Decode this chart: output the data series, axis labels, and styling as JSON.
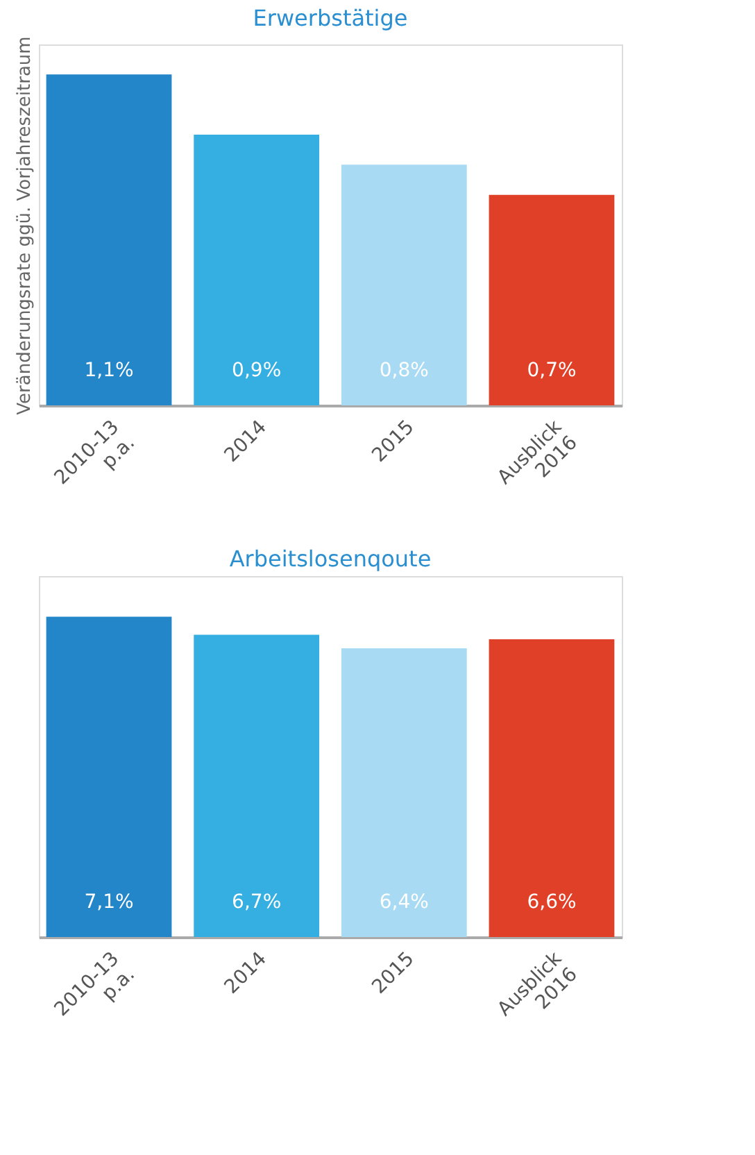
{
  "chart_data": [
    {
      "type": "bar",
      "title": "Erwerbstätige",
      "ylabel": "Veränderungsrate ggü. Vorjahreszeitraum",
      "categories": [
        "2010-13 p.a.",
        "2014",
        "2015",
        "Ausblick 2016"
      ],
      "values": [
        1.1,
        0.9,
        0.8,
        0.7
      ],
      "value_labels": [
        "1,1%",
        "0,9%",
        "0,8%",
        "0,7%"
      ],
      "colors": [
        "#2286c9",
        "#35aee2",
        "#a8daf3",
        "#e04027"
      ],
      "ylim": [
        0,
        1.2
      ],
      "tick_labels": "x",
      "grid": false
    },
    {
      "type": "bar",
      "title": "Arbeitslosenqoute",
      "categories": [
        "2010-13 p.a.",
        "2014",
        "2015",
        "Ausblick 2016"
      ],
      "values": [
        7.1,
        6.7,
        6.4,
        6.6
      ],
      "value_labels": [
        "7,1%",
        "6,7%",
        "6,4%",
        "6,6%"
      ],
      "colors": [
        "#2286c9",
        "#35aee2",
        "#a8daf3",
        "#e04027"
      ],
      "ylim": [
        0,
        8
      ],
      "tick_labels": "x",
      "grid": false
    }
  ]
}
